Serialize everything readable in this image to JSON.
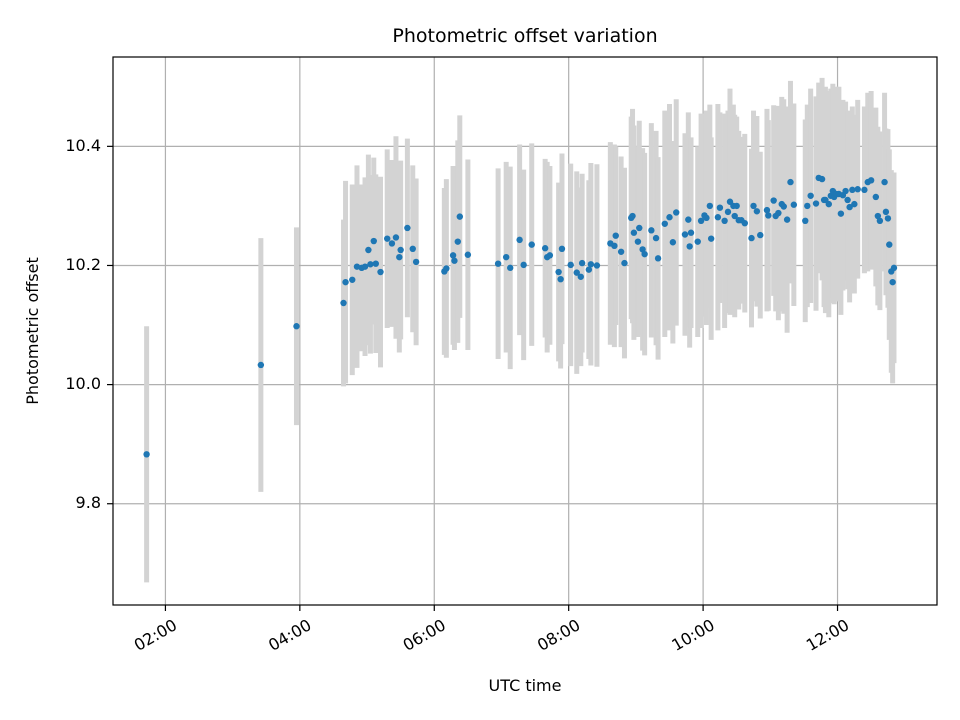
{
  "chart_data": {
    "type": "scatter",
    "title": "Photometric offset variation",
    "xlabel": "UTC time",
    "ylabel": "Photometric offset",
    "grid": true,
    "xlim": [
      1.22,
      13.48
    ],
    "ylim": [
      9.63,
      10.55
    ],
    "x_ticks": [
      {
        "value": 2,
        "label": "02:00"
      },
      {
        "value": 4,
        "label": "04:00"
      },
      {
        "value": 6,
        "label": "06:00"
      },
      {
        "value": 8,
        "label": "08:00"
      },
      {
        "value": 10,
        "label": "10:00"
      },
      {
        "value": 12,
        "label": "12:00"
      }
    ],
    "y_ticks": [
      {
        "value": 9.8,
        "label": "9.8"
      },
      {
        "value": 10.0,
        "label": "10.0"
      },
      {
        "value": 10.2,
        "label": "10.2"
      },
      {
        "value": 10.4,
        "label": "10.4"
      }
    ],
    "colors": {
      "point": "#1f77b4",
      "errorbar": "#d3d3d3",
      "grid": "#b0b0b0"
    },
    "series": [
      {
        "name": "offset",
        "points": [
          [
            1.72,
            9.883,
            0.215
          ],
          [
            3.42,
            10.033,
            0.213
          ],
          [
            3.95,
            10.098,
            0.166
          ],
          [
            4.65,
            10.137,
            0.14
          ],
          [
            4.68,
            10.172,
            0.17
          ],
          [
            4.78,
            10.176,
            0.16
          ],
          [
            4.85,
            10.198,
            0.17
          ],
          [
            4.92,
            10.196,
            0.14
          ],
          [
            4.97,
            10.198,
            0.15
          ],
          [
            5.02,
            10.226,
            0.16
          ],
          [
            5.05,
            10.202,
            0.15
          ],
          [
            5.1,
            10.241,
            0.14
          ],
          [
            5.13,
            10.203,
            0.15
          ],
          [
            5.2,
            10.189,
            0.16
          ],
          [
            5.3,
            10.245,
            0.15
          ],
          [
            5.37,
            10.237,
            0.14
          ],
          [
            5.43,
            10.247,
            0.17
          ],
          [
            5.48,
            10.214,
            0.16
          ],
          [
            5.5,
            10.226,
            0.15
          ],
          [
            5.6,
            10.263,
            0.15
          ],
          [
            5.68,
            10.228,
            0.14
          ],
          [
            5.73,
            10.206,
            0.14
          ],
          [
            6.15,
            10.19,
            0.14
          ],
          [
            6.18,
            10.195,
            0.15
          ],
          [
            6.28,
            10.217,
            0.15
          ],
          [
            6.3,
            10.208,
            0.15
          ],
          [
            6.35,
            10.24,
            0.17
          ],
          [
            6.38,
            10.282,
            0.17
          ],
          [
            6.5,
            10.218,
            0.16
          ],
          [
            6.95,
            10.203,
            0.16
          ],
          [
            7.07,
            10.214,
            0.16
          ],
          [
            7.13,
            10.196,
            0.17
          ],
          [
            7.27,
            10.243,
            0.16
          ],
          [
            7.33,
            10.201,
            0.16
          ],
          [
            7.45,
            10.235,
            0.17
          ],
          [
            7.65,
            10.229,
            0.15
          ],
          [
            7.68,
            10.214,
            0.16
          ],
          [
            7.72,
            10.217,
            0.15
          ],
          [
            7.85,
            10.189,
            0.15
          ],
          [
            7.88,
            10.177,
            0.15
          ],
          [
            7.9,
            10.228,
            0.16
          ],
          [
            8.03,
            10.201,
            0.17
          ],
          [
            8.12,
            10.188,
            0.17
          ],
          [
            8.18,
            10.181,
            0.15
          ],
          [
            8.2,
            10.204,
            0.15
          ],
          [
            8.3,
            10.193,
            0.15
          ],
          [
            8.33,
            10.202,
            0.17
          ],
          [
            8.42,
            10.2,
            0.17
          ],
          [
            8.62,
            10.237,
            0.17
          ],
          [
            8.68,
            10.233,
            0.17
          ],
          [
            8.7,
            10.25,
            0.15
          ],
          [
            8.78,
            10.223,
            0.16
          ],
          [
            8.83,
            10.204,
            0.16
          ],
          [
            8.93,
            10.28,
            0.17
          ],
          [
            8.95,
            10.283,
            0.18
          ],
          [
            8.97,
            10.255,
            0.18
          ],
          [
            9.03,
            10.24,
            0.16
          ],
          [
            9.05,
            10.263,
            0.18
          ],
          [
            9.1,
            10.227,
            0.17
          ],
          [
            9.13,
            10.219,
            0.17
          ],
          [
            9.23,
            10.259,
            0.18
          ],
          [
            9.3,
            10.246,
            0.18
          ],
          [
            9.33,
            10.212,
            0.17
          ],
          [
            9.43,
            10.27,
            0.19
          ],
          [
            9.5,
            10.281,
            0.19
          ],
          [
            9.55,
            10.239,
            0.17
          ],
          [
            9.6,
            10.289,
            0.19
          ],
          [
            9.73,
            10.252,
            0.17
          ],
          [
            9.78,
            10.277,
            0.18
          ],
          [
            9.8,
            10.232,
            0.17
          ],
          [
            9.82,
            10.255,
            0.16
          ],
          [
            9.92,
            10.24,
            0.16
          ],
          [
            9.97,
            10.275,
            0.18
          ],
          [
            10.02,
            10.284,
            0.17
          ],
          [
            10.05,
            10.28,
            0.18
          ],
          [
            10.1,
            10.3,
            0.17
          ],
          [
            10.12,
            10.245,
            0.17
          ],
          [
            10.22,
            10.281,
            0.19
          ],
          [
            10.25,
            10.297,
            0.16
          ],
          [
            10.32,
            10.275,
            0.18
          ],
          [
            10.37,
            10.29,
            0.17
          ],
          [
            10.4,
            10.307,
            0.19
          ],
          [
            10.45,
            10.3,
            0.17
          ],
          [
            10.47,
            10.283,
            0.17
          ],
          [
            10.5,
            10.3,
            0.15
          ],
          [
            10.53,
            10.276,
            0.15
          ],
          [
            10.57,
            10.276,
            0.14
          ],
          [
            10.62,
            10.271,
            0.15
          ],
          [
            10.72,
            10.246,
            0.15
          ],
          [
            10.75,
            10.3,
            0.16
          ],
          [
            10.8,
            10.291,
            0.16
          ],
          [
            10.85,
            10.251,
            0.14
          ],
          [
            10.95,
            10.293,
            0.17
          ],
          [
            10.97,
            10.284,
            0.16
          ],
          [
            11.05,
            10.309,
            0.16
          ],
          [
            11.08,
            10.283,
            0.16
          ],
          [
            11.12,
            10.288,
            0.18
          ],
          [
            11.17,
            10.303,
            0.18
          ],
          [
            11.2,
            10.299,
            0.18
          ],
          [
            11.25,
            10.277,
            0.19
          ],
          [
            11.3,
            10.34,
            0.17
          ],
          [
            11.35,
            10.302,
            0.17
          ],
          [
            11.52,
            10.275,
            0.17
          ],
          [
            11.55,
            10.3,
            0.17
          ],
          [
            11.6,
            10.317,
            0.18
          ],
          [
            11.68,
            10.304,
            0.18
          ],
          [
            11.72,
            10.347,
            0.16
          ],
          [
            11.77,
            10.345,
            0.17
          ],
          [
            11.8,
            10.31,
            0.18
          ],
          [
            11.82,
            10.31,
            0.19
          ],
          [
            11.87,
            10.303,
            0.19
          ],
          [
            11.9,
            10.317,
            0.18
          ],
          [
            11.93,
            10.325,
            0.18
          ],
          [
            11.95,
            10.315,
            0.18
          ],
          [
            11.98,
            10.32,
            0.18
          ],
          [
            12.02,
            10.32,
            0.18
          ],
          [
            12.05,
            10.287,
            0.17
          ],
          [
            12.08,
            10.318,
            0.16
          ],
          [
            12.12,
            10.325,
            0.15
          ],
          [
            12.15,
            10.31,
            0.15
          ],
          [
            12.18,
            10.298,
            0.16
          ],
          [
            12.22,
            10.327,
            0.14
          ],
          [
            12.25,
            10.303,
            0.15
          ],
          [
            12.3,
            10.328,
            0.15
          ],
          [
            12.4,
            10.327,
            0.14
          ],
          [
            12.45,
            10.34,
            0.15
          ],
          [
            12.5,
            10.343,
            0.15
          ],
          [
            12.57,
            10.315,
            0.15
          ],
          [
            12.6,
            10.283,
            0.15
          ],
          [
            12.63,
            10.275,
            0.15
          ],
          [
            12.7,
            10.34,
            0.15
          ],
          [
            12.72,
            10.29,
            0.14
          ],
          [
            12.75,
            10.279,
            0.15
          ],
          [
            12.77,
            10.235,
            0.16
          ],
          [
            12.8,
            10.19,
            0.17
          ],
          [
            12.82,
            10.172,
            0.17
          ],
          [
            12.84,
            10.196,
            0.16
          ]
        ]
      }
    ]
  }
}
